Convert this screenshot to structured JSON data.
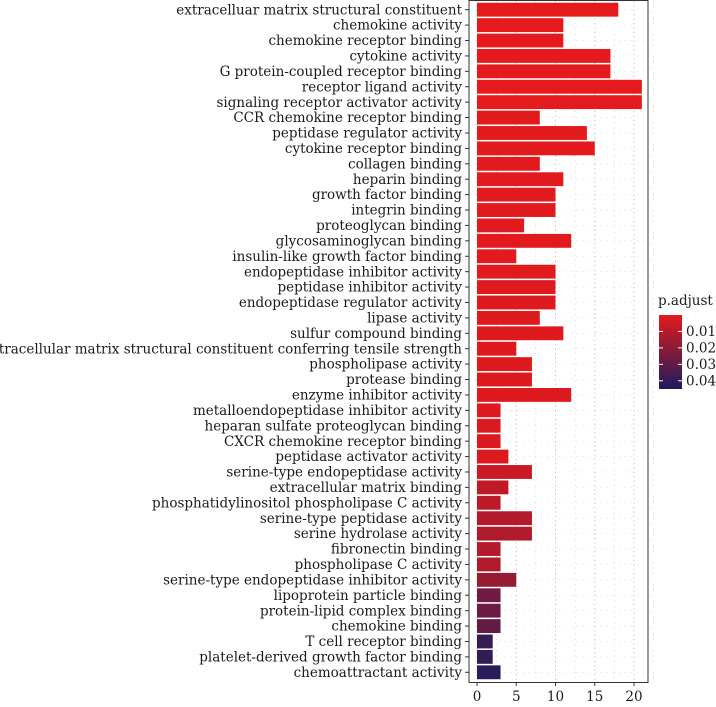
{
  "chart_data": {
    "type": "bar",
    "orientation": "horizontal",
    "title": "",
    "xlabel": "",
    "ylabel": "",
    "xlim": [
      0,
      22.5
    ],
    "x_ticks": [
      0,
      5,
      10,
      15,
      20
    ],
    "grid": true,
    "legend_position": "right",
    "color_scale": {
      "title": "p.adjust",
      "low_color": "#e41a1c",
      "high_color": "#1c1c5c",
      "domain": [
        0.0,
        0.045
      ],
      "ticks": [
        0.01,
        0.02,
        0.03,
        0.04
      ]
    },
    "categories": [
      "extracelluar matrix structural constituent",
      "chemokine activity",
      "chemokine receptor binding",
      "cytokine activity",
      "G protein-coupled receptor binding",
      "receptor ligand activity",
      "signaling receptor activator activity",
      "CCR chemokine receptor binding",
      "peptidase regulator activity",
      "cytokine receptor binding",
      "collagen binding",
      "heparin binding",
      "growth factor binding",
      "integrin binding",
      "proteoglycan binding",
      "glycosaminoglycan binding",
      "insulin-like growth factor binding",
      "endopeptidase inhibitor activity",
      "peptidase inhibitor activity",
      "endopeptidase regulator activity",
      "lipase activity",
      "sulfur compound binding",
      "extracellular matrix structural constituent conferring tensile strength",
      "phospholipase activity",
      "protease binding",
      "enzyme inhibitor activity",
      "metalloendopeptidase inhibitor activity",
      "heparan sulfate proteoglycan binding",
      "CXCR chemokine receptor binding",
      "peptidase activator activity",
      "serine-type endopeptidase activity",
      "extracellular matrix binding",
      "phosphatidylinositol phospholipase C activity",
      "serine-type peptidase activity",
      "serine hydrolase activity",
      "fibronectin binding",
      "phospholipase C activity",
      "serine-type endopeptidase inhibitor activity",
      "lipoprotein particle binding",
      "protein-lipid complex binding",
      "chemokine binding",
      "T cell receptor binding",
      "platelet-derived growth factor binding",
      "chemoattractant activity"
    ],
    "values": [
      18,
      11,
      11,
      17,
      17,
      21,
      21,
      8,
      14,
      15,
      8,
      11,
      10,
      10,
      6,
      12,
      5,
      10,
      10,
      10,
      8,
      11,
      5,
      7,
      7,
      12,
      3,
      3,
      3,
      4,
      7,
      4,
      3,
      7,
      7,
      3,
      3,
      5,
      3,
      3,
      3,
      2,
      2,
      3
    ],
    "p_adjust": [
      0.0001,
      0.0001,
      0.0001,
      0.0001,
      0.0001,
      0.0001,
      0.0001,
      0.0002,
      0.0002,
      0.0003,
      0.0004,
      0.0005,
      0.0006,
      0.0007,
      0.0008,
      0.0009,
      0.001,
      0.001,
      0.0011,
      0.0012,
      0.0013,
      0.0014,
      0.0015,
      0.0016,
      0.0017,
      0.0018,
      0.0019,
      0.002,
      0.0021,
      0.0022,
      0.006,
      0.008,
      0.009,
      0.011,
      0.012,
      0.011,
      0.012,
      0.017,
      0.026,
      0.027,
      0.029,
      0.039,
      0.04,
      0.042
    ]
  }
}
